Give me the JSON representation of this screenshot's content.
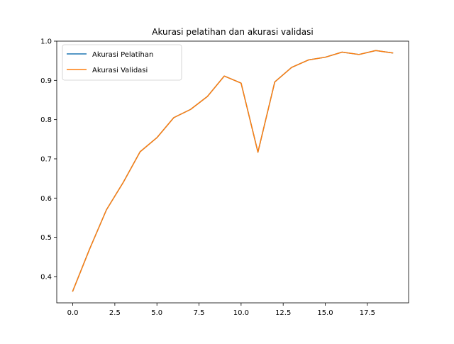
{
  "chart_data": {
    "type": "line",
    "title": "Akurasi pelatihan dan akurasi validasi",
    "xlabel": "",
    "ylabel": "",
    "xlim": [
      -0.95,
      19.95
    ],
    "ylim": [
      0.333,
      1.0
    ],
    "grid": false,
    "legend_position": "top-left",
    "x_ticks": [
      0.0,
      2.5,
      5.0,
      7.5,
      10.0,
      12.5,
      15.0,
      17.5
    ],
    "x_tick_labels": [
      "0.0",
      "2.5",
      "5.0",
      "7.5",
      "10.0",
      "12.5",
      "15.0",
      "17.5"
    ],
    "y_ticks": [
      0.4,
      0.5,
      0.6,
      0.7,
      0.8,
      0.9,
      1.0
    ],
    "y_tick_labels": [
      "0.4",
      "0.5",
      "0.6",
      "0.7",
      "0.8",
      "0.9",
      "1.0"
    ],
    "x": [
      0,
      1,
      2,
      3,
      4,
      5,
      6,
      7,
      8,
      9,
      10,
      11,
      12,
      13,
      14,
      15,
      16,
      17,
      18,
      19
    ],
    "series": [
      {
        "name": "Akurasi Pelatihan",
        "color": "#1f77b4",
        "values": [
          0.363,
          0.47,
          0.57,
          0.64,
          0.718,
          0.754,
          0.805,
          0.826,
          0.859,
          0.911,
          0.893,
          0.717,
          0.896,
          0.933,
          0.952,
          0.959,
          0.972,
          0.966,
          0.976,
          0.97
        ]
      },
      {
        "name": "Akurasi Validasi",
        "color": "#ff7f0e",
        "values": [
          0.363,
          0.47,
          0.57,
          0.64,
          0.718,
          0.754,
          0.805,
          0.826,
          0.859,
          0.911,
          0.893,
          0.717,
          0.896,
          0.933,
          0.952,
          0.959,
          0.972,
          0.966,
          0.976,
          0.97
        ]
      }
    ]
  }
}
